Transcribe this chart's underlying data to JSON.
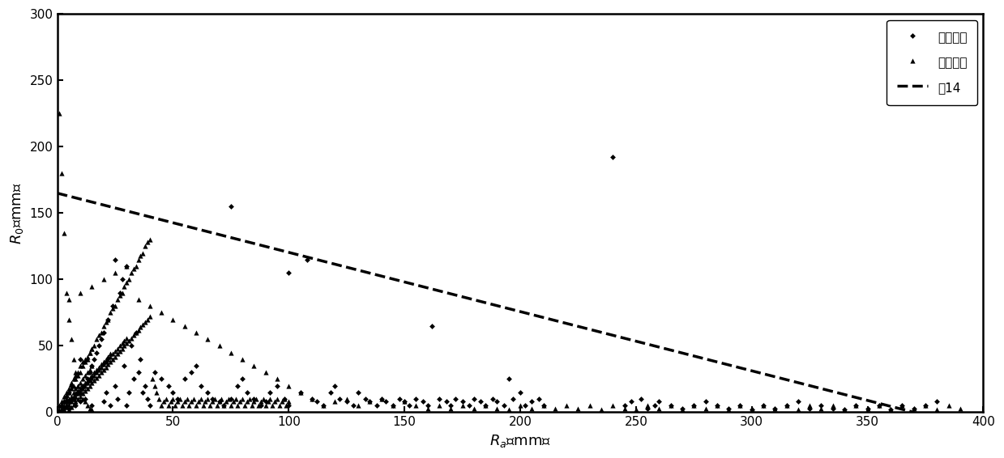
{
  "xlim": [
    0,
    400
  ],
  "ylim": [
    0,
    300
  ],
  "xticks": [
    0,
    50,
    100,
    150,
    200,
    250,
    300,
    350,
    400
  ],
  "yticks": [
    0,
    50,
    100,
    150,
    200,
    250,
    300
  ],
  "line_x": [
    0,
    370
  ],
  "line_y": [
    165,
    0
  ],
  "line_color": "#000000",
  "line_style": "--",
  "line_width": 2.5,
  "legend_label_disaster": "有灾害日",
  "legend_label_no_disaster": "无灾害日",
  "legend_label_line": "式14",
  "diamond_points": [
    [
      2,
      5
    ],
    [
      3,
      8
    ],
    [
      4,
      12
    ],
    [
      5,
      15
    ],
    [
      5,
      3
    ],
    [
      6,
      20
    ],
    [
      7,
      10
    ],
    [
      8,
      5
    ],
    [
      9,
      15
    ],
    [
      10,
      8
    ],
    [
      10,
      40
    ],
    [
      11,
      20
    ],
    [
      12,
      10
    ],
    [
      13,
      25
    ],
    [
      14,
      30
    ],
    [
      15,
      35
    ],
    [
      15,
      5
    ],
    [
      16,
      40
    ],
    [
      17,
      45
    ],
    [
      18,
      50
    ],
    [
      19,
      55
    ],
    [
      20,
      60
    ],
    [
      20,
      8
    ],
    [
      21,
      15
    ],
    [
      22,
      70
    ],
    [
      23,
      5
    ],
    [
      24,
      80
    ],
    [
      25,
      20
    ],
    [
      25,
      115
    ],
    [
      26,
      10
    ],
    [
      27,
      90
    ],
    [
      28,
      100
    ],
    [
      29,
      35
    ],
    [
      30,
      110
    ],
    [
      30,
      5
    ],
    [
      31,
      15
    ],
    [
      32,
      50
    ],
    [
      33,
      25
    ],
    [
      34,
      60
    ],
    [
      35,
      30
    ],
    [
      36,
      40
    ],
    [
      37,
      15
    ],
    [
      38,
      20
    ],
    [
      39,
      10
    ],
    [
      40,
      5
    ],
    [
      42,
      30
    ],
    [
      45,
      25
    ],
    [
      48,
      20
    ],
    [
      50,
      15
    ],
    [
      52,
      10
    ],
    [
      55,
      25
    ],
    [
      58,
      30
    ],
    [
      60,
      35
    ],
    [
      62,
      20
    ],
    [
      65,
      15
    ],
    [
      67,
      10
    ],
    [
      70,
      8
    ],
    [
      72,
      5
    ],
    [
      75,
      155
    ],
    [
      75,
      10
    ],
    [
      78,
      20
    ],
    [
      80,
      25
    ],
    [
      82,
      15
    ],
    [
      85,
      10
    ],
    [
      88,
      5
    ],
    [
      90,
      8
    ],
    [
      92,
      15
    ],
    [
      95,
      20
    ],
    [
      98,
      10
    ],
    [
      100,
      5
    ],
    [
      100,
      105
    ],
    [
      105,
      15
    ],
    [
      108,
      115
    ],
    [
      110,
      10
    ],
    [
      112,
      8
    ],
    [
      115,
      5
    ],
    [
      118,
      15
    ],
    [
      120,
      20
    ],
    [
      122,
      10
    ],
    [
      125,
      8
    ],
    [
      128,
      5
    ],
    [
      130,
      15
    ],
    [
      133,
      10
    ],
    [
      135,
      8
    ],
    [
      138,
      5
    ],
    [
      140,
      10
    ],
    [
      142,
      8
    ],
    [
      145,
      5
    ],
    [
      148,
      10
    ],
    [
      150,
      8
    ],
    [
      152,
      5
    ],
    [
      155,
      10
    ],
    [
      158,
      8
    ],
    [
      160,
      5
    ],
    [
      162,
      65
    ],
    [
      165,
      10
    ],
    [
      168,
      8
    ],
    [
      170,
      5
    ],
    [
      172,
      10
    ],
    [
      175,
      8
    ],
    [
      178,
      5
    ],
    [
      180,
      10
    ],
    [
      183,
      8
    ],
    [
      185,
      5
    ],
    [
      188,
      10
    ],
    [
      190,
      8
    ],
    [
      193,
      5
    ],
    [
      195,
      25
    ],
    [
      197,
      10
    ],
    [
      200,
      15
    ],
    [
      202,
      5
    ],
    [
      205,
      8
    ],
    [
      208,
      10
    ],
    [
      210,
      5
    ],
    [
      240,
      192
    ],
    [
      245,
      5
    ],
    [
      248,
      8
    ],
    [
      252,
      10
    ],
    [
      255,
      3
    ],
    [
      258,
      5
    ],
    [
      260,
      8
    ],
    [
      265,
      5
    ],
    [
      270,
      3
    ],
    [
      275,
      5
    ],
    [
      280,
      8
    ],
    [
      285,
      5
    ],
    [
      290,
      3
    ],
    [
      295,
      5
    ],
    [
      300,
      2
    ],
    [
      305,
      5
    ],
    [
      310,
      3
    ],
    [
      315,
      5
    ],
    [
      320,
      8
    ],
    [
      325,
      3
    ],
    [
      330,
      5
    ],
    [
      335,
      3
    ],
    [
      340,
      2
    ],
    [
      345,
      5
    ],
    [
      350,
      3
    ],
    [
      355,
      5
    ],
    [
      360,
      2
    ],
    [
      365,
      5
    ],
    [
      370,
      3
    ],
    [
      375,
      5
    ],
    [
      380,
      8
    ]
  ],
  "triangle_points": [
    [
      1,
      225
    ],
    [
      2,
      180
    ],
    [
      3,
      135
    ],
    [
      4,
      90
    ],
    [
      5,
      70
    ],
    [
      6,
      55
    ],
    [
      7,
      40
    ],
    [
      8,
      30
    ],
    [
      9,
      20
    ],
    [
      10,
      15
    ],
    [
      11,
      10
    ],
    [
      12,
      8
    ],
    [
      13,
      5
    ],
    [
      14,
      3
    ],
    [
      15,
      2
    ],
    [
      1,
      5
    ],
    [
      2,
      8
    ],
    [
      3,
      12
    ],
    [
      4,
      15
    ],
    [
      5,
      18
    ],
    [
      6,
      22
    ],
    [
      7,
      25
    ],
    [
      8,
      28
    ],
    [
      9,
      30
    ],
    [
      10,
      35
    ],
    [
      11,
      38
    ],
    [
      12,
      40
    ],
    [
      13,
      42
    ],
    [
      14,
      45
    ],
    [
      15,
      48
    ],
    [
      2,
      3
    ],
    [
      3,
      5
    ],
    [
      4,
      8
    ],
    [
      5,
      10
    ],
    [
      6,
      12
    ],
    [
      7,
      15
    ],
    [
      8,
      18
    ],
    [
      9,
      20
    ],
    [
      10,
      22
    ],
    [
      11,
      25
    ],
    [
      12,
      28
    ],
    [
      13,
      30
    ],
    [
      14,
      32
    ],
    [
      15,
      35
    ],
    [
      3,
      2
    ],
    [
      4,
      4
    ],
    [
      5,
      6
    ],
    [
      6,
      8
    ],
    [
      7,
      10
    ],
    [
      8,
      12
    ],
    [
      9,
      14
    ],
    [
      10,
      16
    ],
    [
      11,
      18
    ],
    [
      12,
      20
    ],
    [
      13,
      22
    ],
    [
      14,
      24
    ],
    [
      15,
      26
    ],
    [
      16,
      28
    ],
    [
      17,
      30
    ],
    [
      18,
      32
    ],
    [
      19,
      34
    ],
    [
      20,
      36
    ],
    [
      21,
      38
    ],
    [
      22,
      40
    ],
    [
      23,
      42
    ],
    [
      24,
      44
    ],
    [
      25,
      46
    ],
    [
      26,
      48
    ],
    [
      27,
      50
    ],
    [
      28,
      52
    ],
    [
      29,
      54
    ],
    [
      30,
      56
    ],
    [
      2,
      2
    ],
    [
      3,
      4
    ],
    [
      4,
      6
    ],
    [
      5,
      8
    ],
    [
      6,
      10
    ],
    [
      7,
      12
    ],
    [
      8,
      14
    ],
    [
      9,
      16
    ],
    [
      10,
      18
    ],
    [
      11,
      20
    ],
    [
      12,
      22
    ],
    [
      13,
      24
    ],
    [
      14,
      26
    ],
    [
      15,
      28
    ],
    [
      16,
      30
    ],
    [
      17,
      32
    ],
    [
      18,
      34
    ],
    [
      19,
      36
    ],
    [
      20,
      38
    ],
    [
      21,
      40
    ],
    [
      22,
      42
    ],
    [
      23,
      44
    ],
    [
      5,
      2
    ],
    [
      6,
      4
    ],
    [
      7,
      6
    ],
    [
      8,
      8
    ],
    [
      9,
      10
    ],
    [
      10,
      12
    ],
    [
      11,
      14
    ],
    [
      12,
      16
    ],
    [
      13,
      18
    ],
    [
      14,
      20
    ],
    [
      15,
      22
    ],
    [
      16,
      24
    ],
    [
      17,
      26
    ],
    [
      18,
      28
    ],
    [
      19,
      30
    ],
    [
      20,
      32
    ],
    [
      21,
      34
    ],
    [
      22,
      36
    ],
    [
      23,
      38
    ],
    [
      24,
      40
    ],
    [
      25,
      42
    ],
    [
      26,
      44
    ],
    [
      27,
      46
    ],
    [
      28,
      48
    ],
    [
      29,
      50
    ],
    [
      30,
      52
    ],
    [
      31,
      54
    ],
    [
      32,
      56
    ],
    [
      33,
      58
    ],
    [
      34,
      60
    ],
    [
      35,
      62
    ],
    [
      36,
      64
    ],
    [
      37,
      66
    ],
    [
      38,
      68
    ],
    [
      39,
      70
    ],
    [
      40,
      72
    ],
    [
      1,
      2
    ],
    [
      2,
      5
    ],
    [
      3,
      8
    ],
    [
      4,
      10
    ],
    [
      5,
      15
    ],
    [
      6,
      18
    ],
    [
      7,
      20
    ],
    [
      8,
      25
    ],
    [
      9,
      28
    ],
    [
      10,
      30
    ],
    [
      11,
      35
    ],
    [
      12,
      38
    ],
    [
      13,
      40
    ],
    [
      14,
      45
    ],
    [
      15,
      48
    ],
    [
      16,
      50
    ],
    [
      17,
      55
    ],
    [
      18,
      58
    ],
    [
      19,
      60
    ],
    [
      20,
      65
    ],
    [
      21,
      68
    ],
    [
      22,
      70
    ],
    [
      23,
      75
    ],
    [
      24,
      78
    ],
    [
      25,
      80
    ],
    [
      26,
      85
    ],
    [
      27,
      88
    ],
    [
      28,
      90
    ],
    [
      29,
      95
    ],
    [
      30,
      98
    ],
    [
      31,
      100
    ],
    [
      32,
      105
    ],
    [
      33,
      108
    ],
    [
      34,
      110
    ],
    [
      35,
      115
    ],
    [
      36,
      118
    ],
    [
      37,
      120
    ],
    [
      38,
      125
    ],
    [
      39,
      128
    ],
    [
      40,
      130
    ],
    [
      5,
      85
    ],
    [
      10,
      90
    ],
    [
      15,
      95
    ],
    [
      20,
      100
    ],
    [
      25,
      105
    ],
    [
      30,
      110
    ],
    [
      35,
      85
    ],
    [
      40,
      80
    ],
    [
      45,
      75
    ],
    [
      50,
      70
    ],
    [
      55,
      65
    ],
    [
      60,
      60
    ],
    [
      65,
      55
    ],
    [
      70,
      50
    ],
    [
      75,
      45
    ],
    [
      80,
      40
    ],
    [
      85,
      35
    ],
    [
      90,
      30
    ],
    [
      95,
      25
    ],
    [
      100,
      20
    ],
    [
      105,
      15
    ],
    [
      110,
      10
    ],
    [
      115,
      5
    ],
    [
      120,
      8
    ],
    [
      125,
      10
    ],
    [
      130,
      5
    ],
    [
      135,
      8
    ],
    [
      140,
      10
    ],
    [
      145,
      5
    ],
    [
      150,
      8
    ],
    [
      155,
      5
    ],
    [
      160,
      3
    ],
    [
      165,
      5
    ],
    [
      170,
      3
    ],
    [
      175,
      5
    ],
    [
      180,
      3
    ],
    [
      185,
      5
    ],
    [
      190,
      3
    ],
    [
      195,
      2
    ],
    [
      200,
      5
    ],
    [
      205,
      3
    ],
    [
      210,
      5
    ],
    [
      215,
      3
    ],
    [
      220,
      5
    ],
    [
      225,
      3
    ],
    [
      230,
      5
    ],
    [
      235,
      2
    ],
    [
      240,
      5
    ],
    [
      245,
      3
    ],
    [
      250,
      2
    ],
    [
      255,
      5
    ],
    [
      260,
      3
    ],
    [
      265,
      5
    ],
    [
      270,
      2
    ],
    [
      275,
      5
    ],
    [
      280,
      3
    ],
    [
      285,
      5
    ],
    [
      290,
      2
    ],
    [
      295,
      5
    ],
    [
      300,
      3
    ],
    [
      305,
      5
    ],
    [
      310,
      3
    ],
    [
      315,
      5
    ],
    [
      320,
      2
    ],
    [
      325,
      5
    ],
    [
      330,
      3
    ],
    [
      335,
      5
    ],
    [
      340,
      2
    ],
    [
      345,
      5
    ],
    [
      350,
      3
    ],
    [
      355,
      5
    ],
    [
      360,
      2
    ],
    [
      365,
      5
    ],
    [
      370,
      3
    ],
    [
      375,
      5
    ],
    [
      380,
      2
    ],
    [
      385,
      5
    ],
    [
      390,
      3
    ],
    [
      41,
      25
    ],
    [
      42,
      20
    ],
    [
      43,
      15
    ],
    [
      44,
      10
    ],
    [
      45,
      5
    ],
    [
      46,
      8
    ],
    [
      47,
      10
    ],
    [
      48,
      5
    ],
    [
      49,
      8
    ],
    [
      50,
      10
    ],
    [
      51,
      5
    ],
    [
      52,
      8
    ],
    [
      53,
      10
    ],
    [
      54,
      5
    ],
    [
      55,
      8
    ],
    [
      56,
      10
    ],
    [
      57,
      5
    ],
    [
      58,
      8
    ],
    [
      59,
      10
    ],
    [
      60,
      5
    ],
    [
      61,
      8
    ],
    [
      62,
      10
    ],
    [
      63,
      5
    ],
    [
      64,
      8
    ],
    [
      65,
      10
    ],
    [
      66,
      5
    ],
    [
      67,
      8
    ],
    [
      68,
      10
    ],
    [
      69,
      5
    ],
    [
      70,
      8
    ],
    [
      71,
      10
    ],
    [
      72,
      5
    ],
    [
      73,
      8
    ],
    [
      74,
      10
    ],
    [
      75,
      5
    ],
    [
      76,
      8
    ],
    [
      77,
      10
    ],
    [
      78,
      5
    ],
    [
      79,
      8
    ],
    [
      80,
      10
    ],
    [
      81,
      5
    ],
    [
      82,
      8
    ],
    [
      83,
      10
    ],
    [
      84,
      5
    ],
    [
      85,
      8
    ],
    [
      86,
      10
    ],
    [
      87,
      5
    ],
    [
      88,
      8
    ],
    [
      89,
      10
    ],
    [
      90,
      5
    ],
    [
      91,
      8
    ],
    [
      92,
      10
    ],
    [
      93,
      5
    ],
    [
      94,
      8
    ],
    [
      95,
      10
    ],
    [
      96,
      5
    ],
    [
      97,
      8
    ],
    [
      98,
      10
    ],
    [
      99,
      5
    ],
    [
      100,
      8
    ]
  ]
}
